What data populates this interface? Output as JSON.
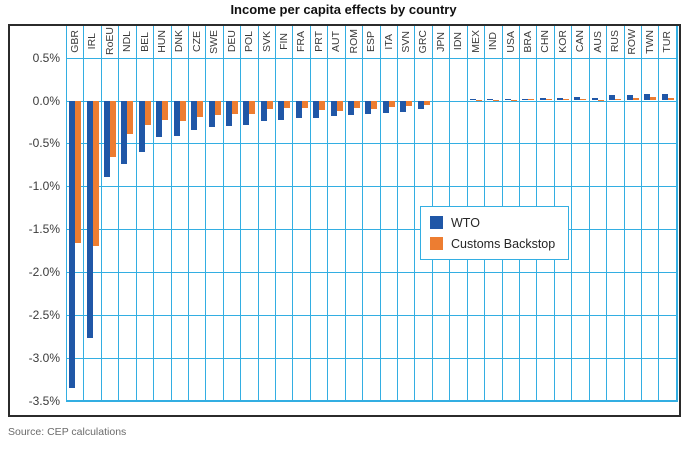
{
  "chart_data": {
    "type": "bar",
    "title": "Income per capita effects by country",
    "source": "Source: CEP calculations",
    "unit": "percent",
    "ylim": [
      -3.5,
      0.5
    ],
    "grid": true,
    "legend_position": "center-right",
    "yticks": [
      "0.5%",
      "0.0%",
      "-0.5%",
      "-1.0%",
      "-1.5%",
      "-2.0%",
      "-2.5%",
      "-3.0%",
      "-3.5%"
    ],
    "categories": [
      "GBR",
      "IRL",
      "RoEU",
      "NDL",
      "BEL",
      "HUN",
      "DNK",
      "CZE",
      "SWE",
      "DEU",
      "POL",
      "SVK",
      "FIN",
      "FRA",
      "PRT",
      "AUT",
      "ROM",
      "ESP",
      "ITA",
      "SVN",
      "GRC",
      "JPN",
      "IDN",
      "MEX",
      "IND",
      "USA",
      "BRA",
      "CHN",
      "KOR",
      "CAN",
      "AUS",
      "RUS",
      "ROW",
      "TWN",
      "TUR"
    ],
    "series": [
      {
        "name": "WTO",
        "color": "#2057a7",
        "values": [
          -3.35,
          -2.77,
          -0.89,
          -0.74,
          -0.6,
          -0.43,
          -0.41,
          -0.34,
          -0.31,
          -0.3,
          -0.28,
          -0.24,
          -0.23,
          -0.2,
          -0.2,
          -0.18,
          -0.17,
          -0.16,
          -0.14,
          -0.13,
          -0.1,
          0.0,
          0.0,
          0.02,
          0.02,
          0.02,
          0.02,
          0.03,
          0.03,
          0.04,
          0.03,
          0.06,
          0.06,
          0.08,
          0.08
        ]
      },
      {
        "name": "Customs Backstop",
        "color": "#ed7d31",
        "values": [
          -1.66,
          -1.7,
          -0.66,
          -0.39,
          -0.28,
          -0.23,
          -0.24,
          -0.19,
          -0.17,
          -0.16,
          -0.16,
          -0.1,
          -0.09,
          -0.09,
          -0.11,
          -0.12,
          -0.09,
          -0.1,
          -0.08,
          -0.06,
          -0.05,
          0.0,
          0.0,
          0.01,
          0.01,
          0.01,
          0.02,
          0.02,
          0.02,
          0.02,
          0.01,
          0.02,
          0.03,
          0.04,
          0.03
        ]
      }
    ],
    "colors": {
      "gridline": "#33aee2",
      "box_border": "#2b2b2b",
      "wto_blue": "#2057a7",
      "backstop_orange": "#ed7d31"
    }
  }
}
